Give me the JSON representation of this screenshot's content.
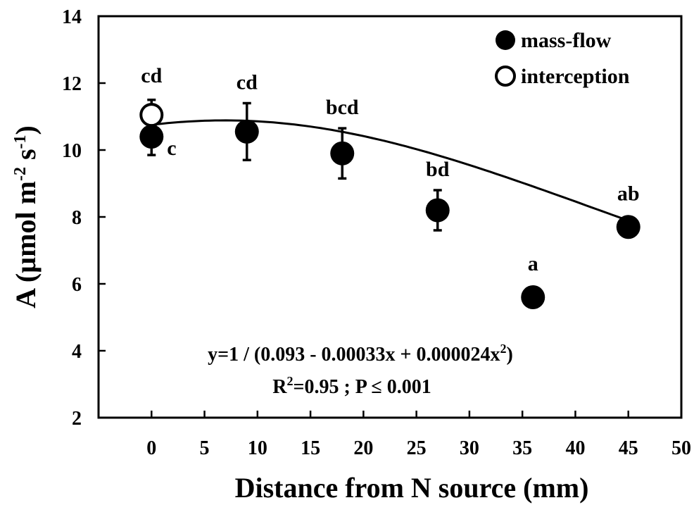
{
  "chart_data": {
    "type": "scatter",
    "xlabel": "Distance from N source (mm)",
    "ylabel_prefix": "A (µmol m",
    "ylabel_sup1": "-2",
    "ylabel_mid": " s",
    "ylabel_sup2": "-1",
    "ylabel_suffix": ")",
    "xlim": [
      -5,
      50
    ],
    "ylim": [
      2,
      14
    ],
    "x_ticks": [
      0,
      5,
      10,
      15,
      20,
      25,
      30,
      35,
      40,
      45,
      50
    ],
    "y_ticks": [
      2,
      4,
      6,
      8,
      10,
      12,
      14
    ],
    "grid": false,
    "legend_position": "top-right",
    "series": [
      {
        "name": "mass-flow",
        "marker": "filled-circle",
        "points": [
          {
            "x": 0,
            "y": 10.4,
            "err": 0.55,
            "label": "c"
          },
          {
            "x": 9,
            "y": 10.55,
            "err": 0.85,
            "label": "cd"
          },
          {
            "x": 18,
            "y": 9.9,
            "err": 0.75,
            "label": "bcd"
          },
          {
            "x": 27,
            "y": 8.2,
            "err": 0.6,
            "label": "bd"
          },
          {
            "x": 36,
            "y": 5.6,
            "err": 0,
            "label": "a"
          },
          {
            "x": 45,
            "y": 7.7,
            "err": 0,
            "label": "ab"
          }
        ]
      },
      {
        "name": "interception",
        "marker": "open-circle",
        "points": [
          {
            "x": 0,
            "y": 11.05,
            "err": 0.45,
            "label": "cd"
          }
        ]
      }
    ],
    "fit": {
      "a": 0.093,
      "b": -0.00033,
      "c": 2.4e-05,
      "x_range": [
        0,
        45
      ],
      "eq_prefix": "y=1 / (0.093 - 0.00033x + 0.000024x",
      "eq_sup": "2",
      "eq_suffix": ")",
      "r_prefix": "R",
      "r_sup": "2",
      "r_suffix": "=0.95 ; P ≤ 0.001"
    },
    "colors": {
      "marker": "#000000",
      "line": "#000000",
      "background": "#ffffff"
    }
  }
}
